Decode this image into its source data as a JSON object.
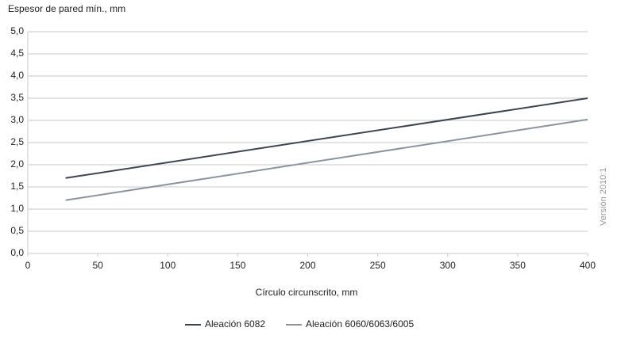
{
  "chart_data": {
    "type": "line",
    "ylabel": "Espesor de pared mín., mm",
    "xlabel": "Círculo circunscrito, mm",
    "annotations": [
      "Versión 2010:1"
    ],
    "xlim": [
      0,
      400
    ],
    "xticks": [
      0,
      50,
      100,
      150,
      200,
      250,
      300,
      350,
      400
    ],
    "ylim": [
      0,
      5
    ],
    "yticks": [
      {
        "value": 0,
        "label": "0,0"
      },
      {
        "value": 0.5,
        "label": "0,5"
      },
      {
        "value": 1,
        "label": "1,0"
      },
      {
        "value": 1.5,
        "label": "1,5"
      },
      {
        "value": 2,
        "label": "2,0"
      },
      {
        "value": 2.5,
        "label": "2,5"
      },
      {
        "value": 3,
        "label": "3,0"
      },
      {
        "value": 3.5,
        "label": "3,5"
      },
      {
        "value": 4,
        "label": "4,0"
      },
      {
        "value": 4.5,
        "label": "4,5"
      },
      {
        "value": 5,
        "label": "5,0"
      }
    ],
    "grid": true,
    "legend": "bottom",
    "x": [
      27,
      400
    ],
    "series": [
      {
        "name": "Aleación 6082",
        "color": "#3e4552",
        "values": [
          1.7,
          3.5
        ]
      },
      {
        "name": "Aleación 6060/6063/6005",
        "color": "#8b949e",
        "values": [
          1.2,
          3.02
        ]
      }
    ]
  }
}
